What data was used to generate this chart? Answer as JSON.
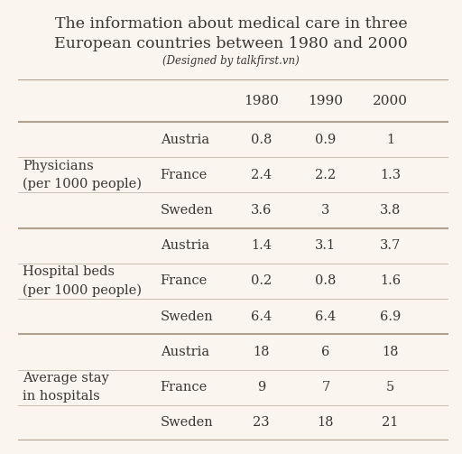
{
  "title": "The information about medical care in three\nEuropean countries between 1980 and 2000",
  "subtitle": "(Designed by talkfirst.vn)",
  "bg_color": "#faf6ef",
  "sections": [
    {
      "label": "Physicians\n(per 1000 people)",
      "rows": [
        [
          "Austria",
          "0.8",
          "0.9",
          "1"
        ],
        [
          "France",
          "2.4",
          "2.2",
          "1.3"
        ],
        [
          "Sweden",
          "3.6",
          "3",
          "3.8"
        ]
      ]
    },
    {
      "label": "Hospital beds\n(per 1000 people)",
      "rows": [
        [
          "Austria",
          "1.4",
          "3.1",
          "3.7"
        ],
        [
          "France",
          "0.2",
          "0.8",
          "1.6"
        ],
        [
          "Sweden",
          "6.4",
          "6.4",
          "6.9"
        ]
      ]
    },
    {
      "label": "Average stay\nin hospitals",
      "rows": [
        [
          "Austria",
          "18",
          "6",
          "18"
        ],
        [
          "France",
          "9",
          "7",
          "5"
        ],
        [
          "Sweden",
          "23",
          "18",
          "21"
        ]
      ]
    }
  ],
  "title_fontsize": 12.5,
  "subtitle_fontsize": 8.5,
  "header_fontsize": 11,
  "cell_fontsize": 10.5,
  "label_fontsize": 10.5,
  "text_color": "#3a3530",
  "line_color": "#c8bfb0",
  "thick_line_color": "#b0a090"
}
